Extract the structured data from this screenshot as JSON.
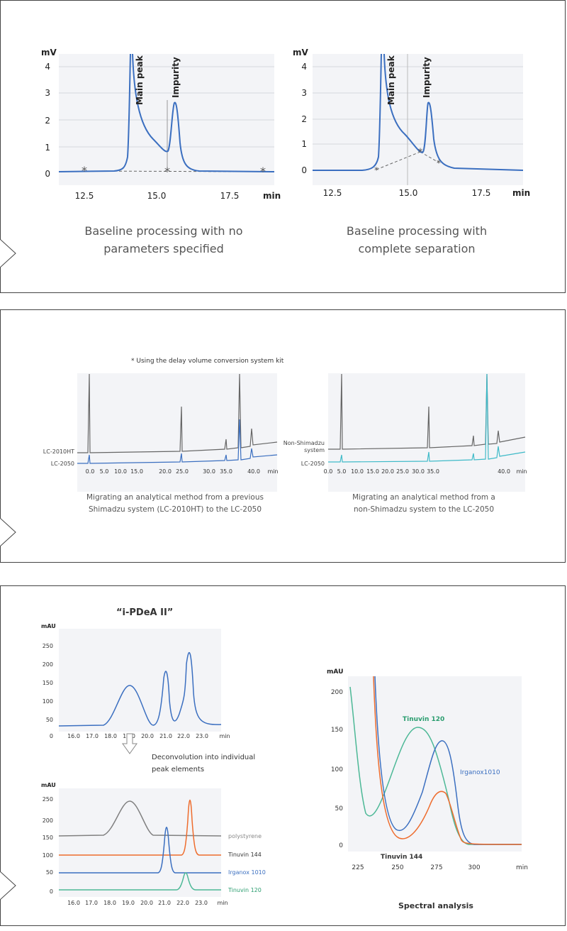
{
  "panel1": {
    "left": {
      "chart_data": {
        "type": "line",
        "ylabel": "mV",
        "xlabel": "min",
        "yticks": [
          "4",
          "3",
          "2",
          "1",
          "0"
        ],
        "xticks": [
          "12.5",
          "15.0",
          "17.5"
        ],
        "xlim": [
          11.7,
          18.8
        ],
        "ylim": [
          -0.5,
          4.4
        ],
        "peak_labels": [
          "Main peak",
          "Impurity"
        ],
        "caption": [
          "Baseline processing with no",
          "parameters specified"
        ]
      }
    },
    "right": {
      "chart_data": {
        "type": "line",
        "ylabel": "mV",
        "xlabel": "min",
        "yticks": [
          "4",
          "3",
          "2",
          "1",
          "0"
        ],
        "xticks": [
          "12.5",
          "15.0",
          "17.5"
        ],
        "xlim": [
          11.7,
          19.2
        ],
        "ylim": [
          -0.5,
          4.4
        ],
        "peak_labels": [
          "Main peak",
          "Impurity"
        ],
        "caption": [
          "Baseline processing with",
          "complete separation"
        ]
      }
    }
  },
  "panel2": {
    "note": "* Using the delay volume conversion system kit",
    "left": {
      "chart_data": {
        "type": "line",
        "xticks": [
          "0.0",
          "5.0",
          "10.0",
          "15.0",
          "20.0",
          "25.0",
          "30.0",
          "35.0",
          "40.0",
          "min"
        ],
        "series": [
          {
            "name": "LC-2010HT",
            "color": "#666666"
          },
          {
            "name": "LC-2050",
            "color": "#3b6fc0"
          }
        ],
        "caption": [
          "Migrating an analytical method from a previous",
          "Shimadzu system (LC-2010HT) to the LC-2050"
        ]
      }
    },
    "right": {
      "chart_data": {
        "type": "line",
        "xticks": [
          "0.0",
          "5.0",
          "10.0",
          "15.0",
          "20.0",
          "25.0",
          "30.0",
          "35.0",
          "40.0",
          "min"
        ],
        "series": [
          {
            "name": "Non-Shimadzu system",
            "label_lines": [
              "Non-Shimadzu",
              "system"
            ],
            "color": "#666666"
          },
          {
            "name": "LC-2050",
            "color": "#3fbac8"
          }
        ],
        "caption": [
          "Migrating an analytical method from a",
          "non-Shimadzu system to the LC-2050"
        ]
      }
    }
  },
  "panel3": {
    "title": "“i-PDeA II”",
    "arrow_text": [
      "Deconvolution into individual",
      "peak elements"
    ],
    "top": {
      "chart_data": {
        "type": "line",
        "ylabel": "mAU",
        "yticks": [
          "250",
          "200",
          "150",
          "100",
          "50",
          "0"
        ],
        "xticks": [
          "16.0",
          "17.0",
          "18.0",
          "19.0",
          "20.0",
          "21.0",
          "22.0",
          "23.0",
          "min"
        ]
      }
    },
    "bottom": {
      "chart_data": {
        "type": "line",
        "ylabel": "mAU",
        "yticks": [
          "250",
          "200",
          "150",
          "100",
          "50",
          "0"
        ],
        "xticks": [
          "16.0",
          "17.0",
          "18.0",
          "19.0",
          "20.0",
          "21.0",
          "22.0",
          "23.0",
          "min"
        ],
        "series": [
          {
            "name": "polystyrene",
            "color": "#808080"
          },
          {
            "name": "Tinuvin 144",
            "color": "#ee6c2d"
          },
          {
            "name": "Irganox 1010",
            "color": "#3b6fc0"
          },
          {
            "name": "Tinuvin 120",
            "color": "#4cb896"
          }
        ]
      }
    },
    "spectral": {
      "chart_data": {
        "type": "line",
        "ylabel": "mAU",
        "xlabel": "min",
        "yticks": [
          "200",
          "150",
          "100",
          "50",
          "0"
        ],
        "xticks": [
          "225",
          "250",
          "275",
          "300"
        ],
        "series": [
          {
            "name": "Tinuvin 120",
            "color": "#4cb896"
          },
          {
            "name": "Irganox1010",
            "color": "#3b6fc0"
          },
          {
            "name": "Tinuvin 144",
            "color": "#ee6c2d"
          }
        ],
        "title": "Spectral analysis"
      }
    }
  }
}
